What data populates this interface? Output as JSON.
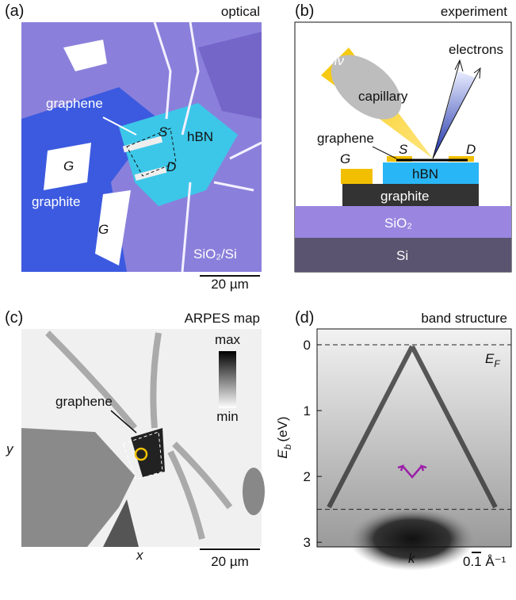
{
  "panels": [
    {
      "label": "(a)",
      "title": "optical",
      "graphene": "graphene",
      "source": "S",
      "material": "hBN",
      "drain": "D",
      "gate_left": "G",
      "graphite": "graphite",
      "gate_bottom": "G",
      "substrate": "SiO₂/Si",
      "scale_bar": "20 µm"
    },
    {
      "label": "(b)",
      "title": "experiment",
      "photon": "hν",
      "capillary": "capillary",
      "electrons": "electrons",
      "graphene": "graphene",
      "gate": "G",
      "source": "S",
      "drain": "D",
      "hbn": "hBN",
      "graphite": "graphite",
      "oxide": "SiO₂",
      "silicon": "Si"
    },
    {
      "label": "(c)",
      "title": "ARPES map",
      "colorbar_max": "max",
      "colorbar_min": "min",
      "graphene": "graphene",
      "y_label": "y",
      "x_label": "x",
      "scale_bar": "20 µm"
    },
    {
      "label": "(d)",
      "title": "band structure",
      "y_label": {
        "symbol": "E",
        "subscript": "b",
        "unit": "(eV)"
      },
      "fermi_label": {
        "symbol": "E",
        "subscript": "F"
      },
      "x_label": "k",
      "scale_bar": "0.1 Å⁻¹",
      "ylim": [
        -0.24,
        3.07
      ],
      "yticks": [
        0,
        1,
        2,
        3
      ],
      "reference_lines": [
        0,
        2.5
      ]
    }
  ]
}
